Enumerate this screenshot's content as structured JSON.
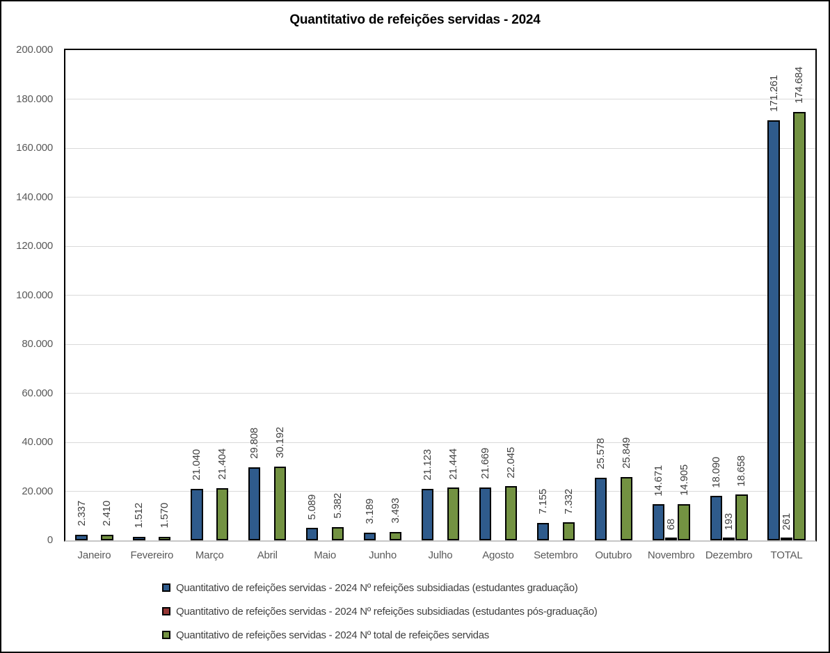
{
  "page_title": "Quantitativo de refeições servidas - 2024",
  "chart_data": {
    "type": "bar",
    "title": "Quantitativo de refeições servidas - 2024",
    "xlabel": "",
    "ylabel": "",
    "categories": [
      "Janeiro",
      "Fevereiro",
      "Março",
      "Abril",
      "Maio",
      "Junho",
      "Julho",
      "Agosto",
      "Setembro",
      "Outubro",
      "Novembro",
      "Dezembro",
      "TOTAL"
    ],
    "series": [
      {
        "name": "Quantitativo de refeições servidas - 2024 Nº refeições subsidiadas (estudantes graduação)",
        "color": "#2F5B8C",
        "values": [
          2337,
          1512,
          21040,
          29808,
          5089,
          3189,
          21123,
          21669,
          7155,
          25578,
          14671,
          18090,
          171261
        ],
        "labels": [
          "2.337",
          "1.512",
          "21.040",
          "29.808",
          "5.089",
          "3.189",
          "21.123",
          "21.669",
          "7.155",
          "25.578",
          "14.671",
          "18.090",
          "171.261"
        ]
      },
      {
        "name": "Quantitativo de refeições servidas - 2024 Nº refeições subsidiadas (estudantes pós-graduação)",
        "color": "#953735",
        "values": [
          0,
          0,
          0,
          0,
          0,
          0,
          0,
          0,
          0,
          0,
          68,
          193,
          261
        ],
        "labels": [
          "",
          "",
          "",
          "",
          "",
          "",
          "",
          "",
          "",
          "",
          "68",
          "193",
          "261"
        ]
      },
      {
        "name": "Quantitativo de refeições servidas - 2024 Nº total de refeições servidas",
        "color": "#739242",
        "values": [
          2410,
          1570,
          21404,
          30192,
          5382,
          3493,
          21444,
          22045,
          7332,
          25849,
          14905,
          18658,
          174684
        ],
        "labels": [
          "2.410",
          "1.570",
          "21.404",
          "30.192",
          "5.382",
          "3.493",
          "21.444",
          "22.045",
          "7.332",
          "25.849",
          "14.905",
          "18.658",
          "174.684"
        ]
      }
    ],
    "ylim": [
      0,
      200000
    ],
    "ytick_interval": 20000,
    "ytick_labels": [
      "200.000",
      "180.000",
      "160.000",
      "140.000",
      "120.000",
      "100.000",
      "80.000",
      "60.000",
      "40.000",
      "20.000",
      "0"
    ],
    "grid": true,
    "legend_position": "bottom-left",
    "bar_label_rotation": "vertical"
  },
  "colors": {
    "frame_border": "#000000",
    "plot_border": "#000000",
    "axis_line": "#C6C6C6",
    "gridline": "#D9D9D9",
    "bar_border": "#000000",
    "axis_text": "#595959",
    "label_text": "#404040",
    "legend_text": "#404040",
    "background": "#FFFFFF",
    "series_blue": "#2F5B8C",
    "series_red": "#953735",
    "series_green": "#739242"
  }
}
